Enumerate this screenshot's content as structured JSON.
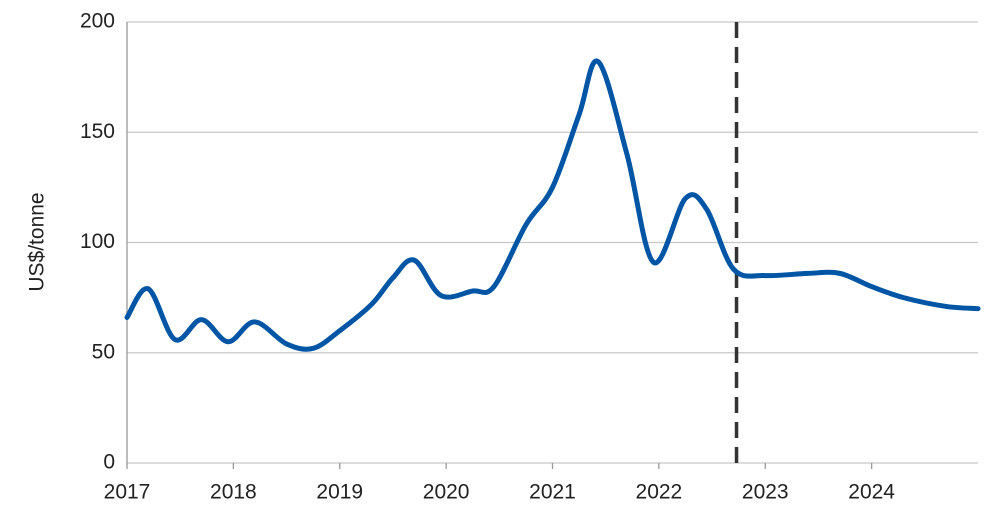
{
  "chart_data": {
    "type": "line",
    "y_label": "US$/tonne",
    "x": [
      2017.0,
      2017.2,
      2017.45,
      2017.7,
      2017.95,
      2018.2,
      2018.5,
      2018.75,
      2019.0,
      2019.3,
      2019.5,
      2019.7,
      2019.95,
      2020.25,
      2020.45,
      2020.75,
      2021.0,
      2021.25,
      2021.43,
      2021.7,
      2021.95,
      2022.25,
      2022.45,
      2022.7,
      2023.0,
      2023.4,
      2023.7,
      2024.0,
      2024.3,
      2024.7,
      2025.0
    ],
    "series": [
      {
        "color": "#0055a5",
        "values": [
          66,
          79,
          56,
          65,
          55,
          64,
          54,
          52,
          60,
          72,
          84,
          92,
          76,
          78,
          80,
          108,
          125,
          158,
          182,
          140,
          91,
          120,
          115,
          88,
          85,
          86,
          86,
          80,
          75,
          71,
          70
        ]
      }
    ],
    "xlim": [
      2017,
      2025
    ],
    "xticks": [
      2017,
      2018,
      2019,
      2020,
      2021,
      2022,
      2023,
      2024
    ],
    "ylim": [
      0,
      200
    ],
    "yticks": [
      0,
      50,
      100,
      150,
      200
    ],
    "grid": true,
    "forecast_line_x": 2022.73
  }
}
